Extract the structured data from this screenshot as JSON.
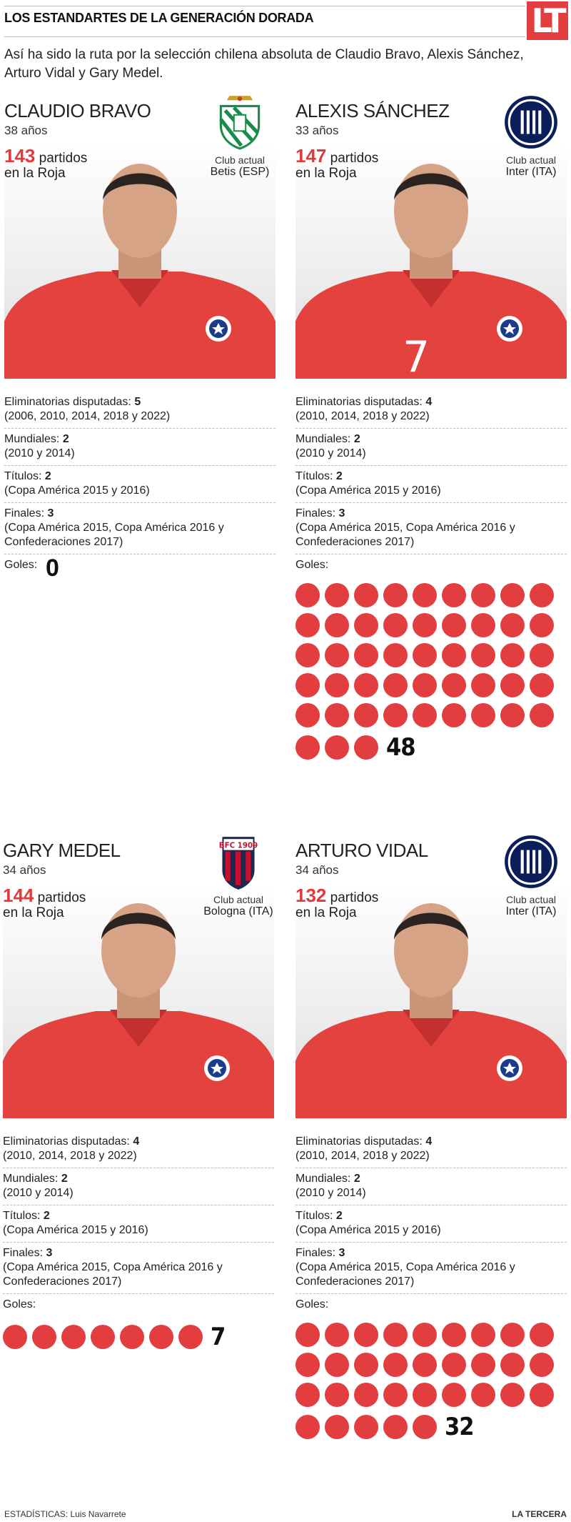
{
  "header": {
    "title": "LOS ESTANDARTES DE LA GENERACIÓN DORADA",
    "logo": "LT"
  },
  "intro": "Así ha sido la ruta por la selección chilena absoluta de Claudio Bravo, Alexis Sánchez, Arturo Vidal y Gary Medel.",
  "labels": {
    "matches_suffix": "partidos",
    "matches_line2": "en la Roja",
    "club_label": "Club actual",
    "eliminatorias": "Eliminatorias disputadas:",
    "mundiales": "Mundiales:",
    "titulos": "Títulos:",
    "finales": "Finales:",
    "goles": "Goles:"
  },
  "players": [
    {
      "name": "CLAUDIO BRAVO",
      "age": "38 años",
      "matches": "143",
      "club": "Betis (ESP)",
      "crest": "betis-crest-icon",
      "eliminatorias_count": "5",
      "eliminatorias_years": "(2006, 2010, 2014, 2018 y 2022)",
      "mundiales_count": "2",
      "mundiales_years": "(2010 y 2014)",
      "titulos_count": "2",
      "titulos_detail": "(Copa América 2015 y 2016)",
      "finales_count": "3",
      "finales_detail": "(Copa América 2015, Copa América 2016 y Confederaciones 2017)",
      "goals": 0,
      "goals_label": "0"
    },
    {
      "name": "ALEXIS SÁNCHEZ",
      "age": "33 años",
      "matches": "147",
      "club": "Inter (ITA)",
      "crest": "inter-crest-icon",
      "eliminatorias_count": "4",
      "eliminatorias_years": "(2010, 2014, 2018 y 2022)",
      "mundiales_count": "2",
      "mundiales_years": "(2010 y 2014)",
      "titulos_count": "2",
      "titulos_detail": "(Copa América 2015 y 2016)",
      "finales_count": "3",
      "finales_detail": "(Copa América 2015, Copa América 2016 y Confederaciones 2017)",
      "goals": 48,
      "goals_label": "48",
      "jersey_number": "7"
    },
    {
      "name": "GARY MEDEL",
      "age": "34 años",
      "matches": "144",
      "club": "Bologna (ITA)",
      "crest": "bologna-crest-icon",
      "eliminatorias_count": "4",
      "eliminatorias_years": "(2010, 2014, 2018 y 2022)",
      "mundiales_count": "2",
      "mundiales_years": "(2010 y 2014)",
      "titulos_count": "2",
      "titulos_detail": "(Copa América 2015 y 2016)",
      "finales_count": "3",
      "finales_detail": "(Copa América 2015, Copa América 2016 y Confederaciones 2017)",
      "goals": 7,
      "goals_label": "7"
    },
    {
      "name": "ARTURO VIDAL",
      "age": "34 años",
      "matches": "132",
      "club": "Inter (ITA)",
      "crest": "inter-crest-icon",
      "eliminatorias_count": "4",
      "eliminatorias_years": "(2010, 2014, 2018 y 2022)",
      "mundiales_count": "2",
      "mundiales_years": "(2010 y 2014)",
      "titulos_count": "2",
      "titulos_detail": "(Copa América 2015 y 2016)",
      "finales_count": "3",
      "finales_detail": "(Copa América 2015, Copa América 2016 y Confederaciones 2017)",
      "goals": 32,
      "goals_label": "32"
    }
  ],
  "bologna_crest_text": "BFC 1909",
  "footer": {
    "credit": "ESTADÍSTICAS: Luis Navarrete",
    "brand": "LA TERCERA"
  },
  "colors": {
    "accent": "#e23d3f",
    "jersey": "#e8413f"
  }
}
